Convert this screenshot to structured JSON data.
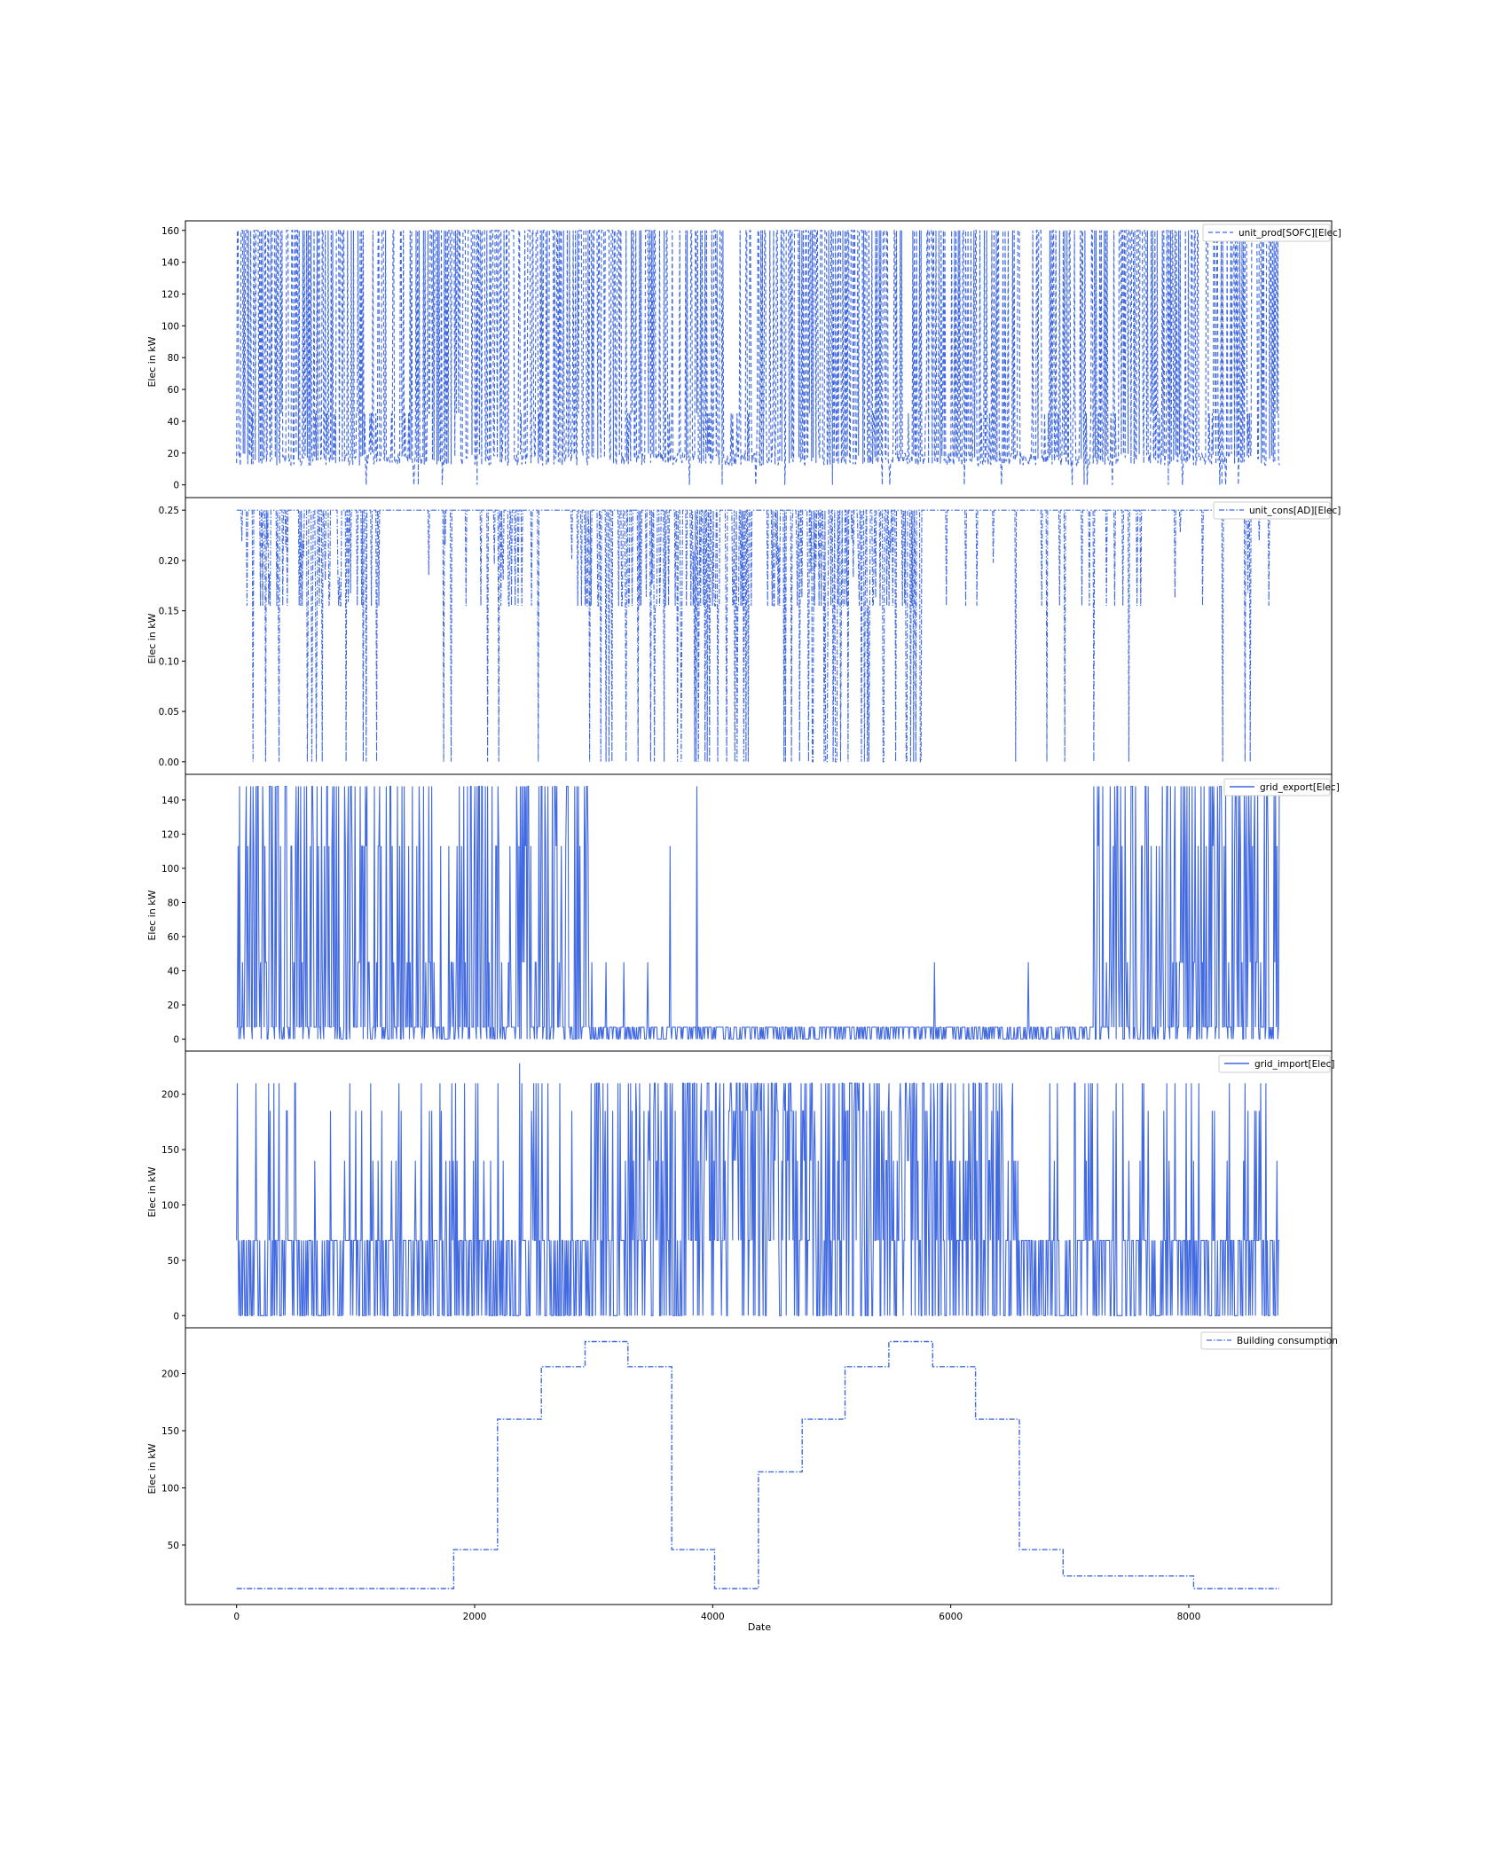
{
  "colors": {
    "series": "#4169e1",
    "axes": "#000000",
    "legend_border": "#cccccc",
    "background": "#ffffff"
  },
  "chart_data": [
    {
      "type": "line",
      "series": [
        {
          "name": "unit_prod[SOFC][Elec]",
          "linestyle": "dashed",
          "pattern": "switching",
          "levels": [
            12,
            20,
            45,
            160
          ],
          "min": 0,
          "max": 160
        }
      ],
      "ylabel": "Elec in kW",
      "xlim": [
        -430,
        9200
      ],
      "ylim": [
        -8,
        166
      ],
      "yticks": [
        0,
        20,
        40,
        60,
        80,
        100,
        120,
        140,
        160
      ],
      "legend": "top-right"
    },
    {
      "type": "line",
      "series": [
        {
          "name": "unit_cons[AD][Elec]",
          "linestyle": "dashdot",
          "pattern": "sparse-drops",
          "levels": [
            0,
            0.155,
            0.25
          ],
          "min": 0,
          "max": 0.25
        }
      ],
      "ylabel": "Elec in kW",
      "xlim": [
        -430,
        9200
      ],
      "ylim": [
        -0.0125,
        0.2625
      ],
      "yticks": [
        "0.00",
        "0.05",
        "0.10",
        "0.15",
        "0.20",
        "0.25"
      ],
      "legend": "top-right"
    },
    {
      "type": "line",
      "series": [
        {
          "name": "grid_export[Elec]",
          "linestyle": "solid",
          "pattern": "seasonal-export",
          "levels": [
            0,
            7,
            45,
            113,
            148
          ],
          "min": 0,
          "max": 148
        }
      ],
      "ylabel": "Elec in kW",
      "xlim": [
        -430,
        9200
      ],
      "ylim": [
        -7,
        155
      ],
      "yticks": [
        0,
        20,
        40,
        60,
        80,
        100,
        120,
        140
      ],
      "legend": "top-right"
    },
    {
      "type": "line",
      "series": [
        {
          "name": "grid_import[Elec]",
          "linestyle": "solid",
          "pattern": "seasonal-import",
          "levels": [
            0,
            68,
            140,
            185,
            210,
            228
          ],
          "min": 0,
          "max": 228
        }
      ],
      "ylabel": "Elec in kW",
      "xlim": [
        -430,
        9200
      ],
      "ylim": [
        -11,
        239
      ],
      "yticks": [
        0,
        50,
        100,
        150,
        200
      ],
      "legend": "top-right"
    },
    {
      "type": "line",
      "series": [
        {
          "name": "Building consumption",
          "linestyle": "dashdot",
          "pattern": "step",
          "x": [
            0,
            1824,
            1824,
            2192,
            2192,
            2560,
            2560,
            2928,
            2928,
            3288,
            3288,
            3656,
            3656,
            4016,
            4016,
            4384,
            4384,
            4752,
            4752,
            5112,
            5112,
            5480,
            5480,
            5848,
            5848,
            6208,
            6208,
            6576,
            6576,
            6944,
            6944,
            8040,
            8040,
            8760
          ],
          "y": [
            12,
            12,
            46,
            46,
            160,
            160,
            206,
            206,
            228,
            228,
            206,
            206,
            46,
            46,
            12,
            12,
            114,
            114,
            160,
            160,
            206,
            206,
            228,
            228,
            206,
            206,
            160,
            160,
            46,
            46,
            23,
            23,
            12,
            12
          ]
        }
      ],
      "xlabel": "Date",
      "ylabel": "Elec in kW",
      "xlim": [
        -430,
        9200
      ],
      "ylim": [
        -2,
        240
      ],
      "xticks": [
        0,
        2000,
        4000,
        6000,
        8000
      ],
      "yticks": [
        50,
        100,
        150,
        200
      ],
      "legend": "top-right"
    }
  ]
}
